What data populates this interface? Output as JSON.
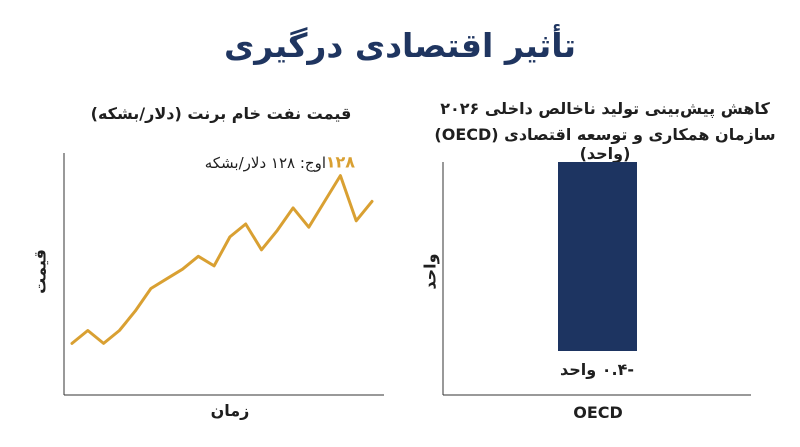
{
  "page": {
    "title": "تأثیر اقتصادی درگیری"
  },
  "colors": {
    "title": "#1f3560",
    "bar": "#1d3461",
    "line": "#d9a032",
    "axis": "#333333"
  },
  "chart_data": [
    {
      "type": "line",
      "title": "قیمت نفت خام برنت (دلار/بشکه)",
      "xlabel": "زمان",
      "ylabel": "قیمت",
      "grid": false,
      "ylim": [
        60,
        135
      ],
      "series": [
        {
          "values": [
            76,
            80,
            76,
            80,
            86,
            93,
            96,
            99,
            103,
            100,
            109,
            113,
            105,
            111,
            118,
            112,
            120,
            128,
            114,
            120
          ]
        }
      ],
      "annotations": {
        "peak_value": "۱۲۸",
        "peak_text": "اوج: ۱۲۸ دلار/بشکه"
      }
    },
    {
      "type": "bar",
      "title_line1": "کاهش پیش‌بینی تولید ناخالص داخلی ۲۰۲۶",
      "title_line2": "سازمان همکاری و توسعه اقتصادی (OECD) (واحد)",
      "categories": [
        "OECD"
      ],
      "values": [
        -0.4
      ],
      "value_label": "-۰.۴ واحد",
      "xlabel": "OECD",
      "ylabel": "واحد",
      "grid": false
    }
  ]
}
